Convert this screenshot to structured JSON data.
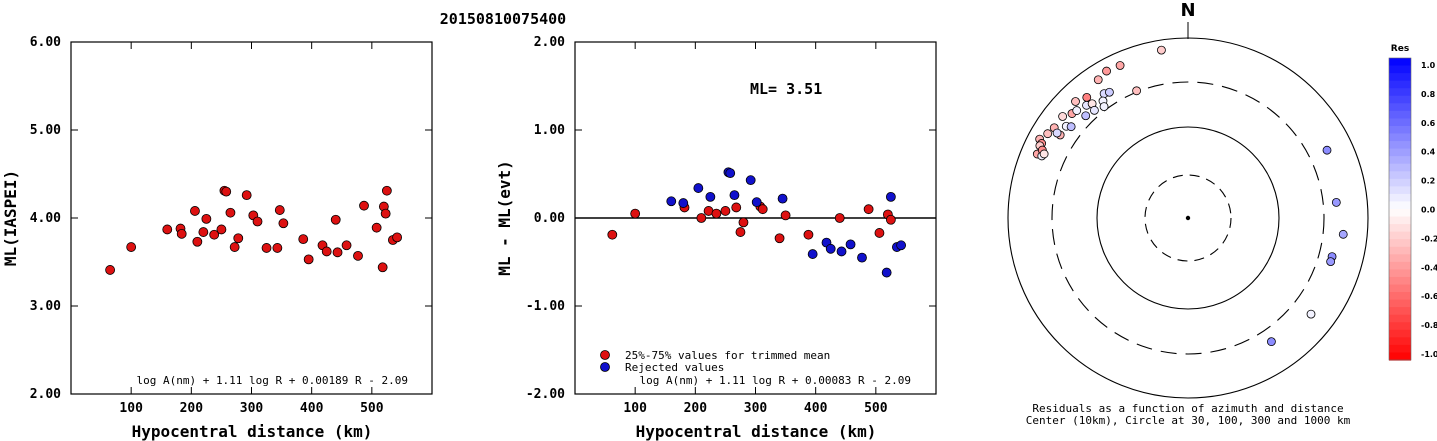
{
  "title": "20150810075400",
  "chart_data": [
    {
      "type": "scatter",
      "ylabel": "ML(IASPEI)",
      "xlabel": "Hypocentral distance (km)",
      "xlim": [
        0,
        600
      ],
      "ylim": [
        2.0,
        6.0
      ],
      "xticks": [
        100,
        200,
        300,
        400,
        500
      ],
      "yticks": [
        "2.00",
        "3.00",
        "4.00",
        "5.00",
        "6.00"
      ],
      "formula": "log A(nm) + 1.11 log R + 0.00189 R - 2.09",
      "points": [
        [
          65,
          3.41
        ],
        [
          100,
          3.67
        ],
        [
          160,
          3.87
        ],
        [
          182,
          3.88
        ],
        [
          184,
          3.82
        ],
        [
          206,
          4.08
        ],
        [
          210,
          3.73
        ],
        [
          220,
          3.84
        ],
        [
          225,
          3.99
        ],
        [
          238,
          3.81
        ],
        [
          250,
          3.87
        ],
        [
          255,
          4.31
        ],
        [
          258,
          4.3
        ],
        [
          265,
          4.06
        ],
        [
          272,
          3.67
        ],
        [
          278,
          3.77
        ],
        [
          292,
          4.26
        ],
        [
          303,
          4.03
        ],
        [
          310,
          3.96
        ],
        [
          325,
          3.66
        ],
        [
          343,
          3.66
        ],
        [
          347,
          4.09
        ],
        [
          353,
          3.94
        ],
        [
          386,
          3.76
        ],
        [
          395,
          3.53
        ],
        [
          418,
          3.69
        ],
        [
          425,
          3.62
        ],
        [
          440,
          3.98
        ],
        [
          443,
          3.61
        ],
        [
          458,
          3.69
        ],
        [
          477,
          3.57
        ],
        [
          487,
          4.14
        ],
        [
          508,
          3.89
        ],
        [
          518,
          3.44
        ],
        [
          520,
          4.13
        ],
        [
          523,
          4.05
        ],
        [
          525,
          4.31
        ],
        [
          535,
          3.75
        ],
        [
          542,
          3.78
        ]
      ]
    },
    {
      "type": "scatter",
      "ylabel": "ML - ML(evt)",
      "xlabel": "Hypocentral distance (km)",
      "xlim": [
        0,
        600
      ],
      "ylim": [
        -2.0,
        2.0
      ],
      "xticks": [
        100,
        200,
        300,
        400,
        500
      ],
      "yticks": [
        "-2.00",
        "-1.00",
        "0.00",
        "1.00",
        "2.00"
      ],
      "annotation": "ML= 3.51",
      "formula": "log A(nm) + 1.11 log R + 0.00083 R - 2.09",
      "legend": [
        {
          "label": "25%-75% values for trimmed mean",
          "color": "#dd1111"
        },
        {
          "label": "Rejected values",
          "color": "#1111cc"
        }
      ],
      "series": [
        {
          "name": "25%-75% values for trimmed mean",
          "color": "#dd1111",
          "points": [
            [
              62,
              -0.19
            ],
            [
              100,
              0.05
            ],
            [
              182,
              0.12
            ],
            [
              210,
              0.0
            ],
            [
              222,
              0.08
            ],
            [
              235,
              0.05
            ],
            [
              250,
              0.08
            ],
            [
              268,
              0.12
            ],
            [
              275,
              -0.16
            ],
            [
              280,
              -0.05
            ],
            [
              308,
              0.13
            ],
            [
              312,
              0.1
            ],
            [
              340,
              -0.23
            ],
            [
              350,
              0.03
            ],
            [
              388,
              -0.19
            ],
            [
              440,
              0.0
            ],
            [
              488,
              0.1
            ],
            [
              506,
              -0.17
            ],
            [
              520,
              0.04
            ],
            [
              525,
              -0.02
            ]
          ]
        },
        {
          "name": "Rejected values",
          "color": "#1111cc",
          "points": [
            [
              160,
              0.19
            ],
            [
              180,
              0.17
            ],
            [
              205,
              0.34
            ],
            [
              225,
              0.24
            ],
            [
              255,
              0.52
            ],
            [
              258,
              0.51
            ],
            [
              265,
              0.26
            ],
            [
              292,
              0.43
            ],
            [
              302,
              0.18
            ],
            [
              345,
              0.22
            ],
            [
              395,
              -0.41
            ],
            [
              418,
              -0.28
            ],
            [
              425,
              -0.35
            ],
            [
              443,
              -0.38
            ],
            [
              458,
              -0.3
            ],
            [
              477,
              -0.45
            ],
            [
              518,
              -0.62
            ],
            [
              525,
              0.24
            ],
            [
              535,
              -0.33
            ],
            [
              542,
              -0.31
            ]
          ]
        }
      ]
    },
    {
      "type": "polar-scatter",
      "north_label": "N",
      "caption_1": "Residuals as a function of azimuth and distance",
      "caption_2": "Center (10km), Circle at 30, 100, 300 and 1000 km",
      "colorbar": {
        "title": "Res",
        "ticks": [
          "1.0",
          "0.8",
          "0.6",
          "0.4",
          "0.2",
          "0.0",
          "-0.2",
          "-0.4",
          "-0.6",
          "-0.8",
          "-1.0"
        ]
      },
      "points": [
        {
          "az": -9,
          "dist_km": 760,
          "res": -0.2
        },
        {
          "az": -24,
          "dist_km": 700,
          "res": -0.35
        },
        {
          "az": -29,
          "dist_km": 720,
          "res": -0.4
        },
        {
          "az": -33,
          "dist_km": 660,
          "res": -0.3
        },
        {
          "az": -40,
          "dist_km": 540,
          "res": -0.5
        },
        {
          "az": -44,
          "dist_km": 610,
          "res": -0.25
        },
        {
          "az": -51,
          "dist_km": 600,
          "res": -0.15
        },
        {
          "az": -48,
          "dist_km": 520,
          "res": -0.35
        },
        {
          "az": -46,
          "dist_km": 500,
          "res": 0.05
        },
        {
          "az": -42,
          "dist_km": 460,
          "res": 0.1
        },
        {
          "az": -40,
          "dist_km": 430,
          "res": -0.1
        },
        {
          "az": -34,
          "dist_km": 440,
          "res": 0.15
        },
        {
          "az": -32,
          "dist_km": 420,
          "res": 0.2
        },
        {
          "az": -36,
          "dist_km": 380,
          "res": 0.05
        },
        {
          "az": -41,
          "dist_km": 360,
          "res": 0.1
        },
        {
          "az": -45,
          "dist_km": 380,
          "res": 0.25
        },
        {
          "az": -56,
          "dist_km": 600,
          "res": -0.3
        },
        {
          "az": -59,
          "dist_km": 640,
          "res": -0.25
        },
        {
          "az": -62,
          "dist_km": 720,
          "res": -0.3
        },
        {
          "az": -63,
          "dist_km": 650,
          "res": -0.45
        },
        {
          "az": -64,
          "dist_km": 660,
          "res": -0.2
        },
        {
          "az": -67,
          "dist_km": 640,
          "res": -0.35
        },
        {
          "az": -67,
          "dist_km": 560,
          "res": 0.05
        },
        {
          "az": -65,
          "dist_km": 590,
          "res": -0.45
        },
        {
          "az": -66,
          "dist_km": 540,
          "res": -0.1
        },
        {
          "az": -57,
          "dist_km": 470,
          "res": -0.3
        },
        {
          "az": -53,
          "dist_km": 470,
          "res": 0.05
        },
        {
          "az": -57,
          "dist_km": 520,
          "res": 0.15
        },
        {
          "az": -52,
          "dist_km": 420,
          "res": 0.25
        },
        {
          "az": -37,
          "dist_km": 330,
          "res": 0.05
        },
        {
          "az": -22,
          "dist_km": 310,
          "res": -0.25
        },
        {
          "az": 64,
          "dist_km": 500,
          "res": 0.45
        },
        {
          "az": 84,
          "dist_km": 430,
          "res": 0.4
        },
        {
          "az": 96,
          "dist_km": 520,
          "res": 0.35
        },
        {
          "az": 105,
          "dist_km": 430,
          "res": 0.45
        },
        {
          "az": 107,
          "dist_km": 430,
          "res": 0.4
        },
        {
          "az": 128,
          "dist_km": 520,
          "res": 0.05
        },
        {
          "az": 146,
          "dist_km": 430,
          "res": 0.45
        }
      ]
    }
  ]
}
